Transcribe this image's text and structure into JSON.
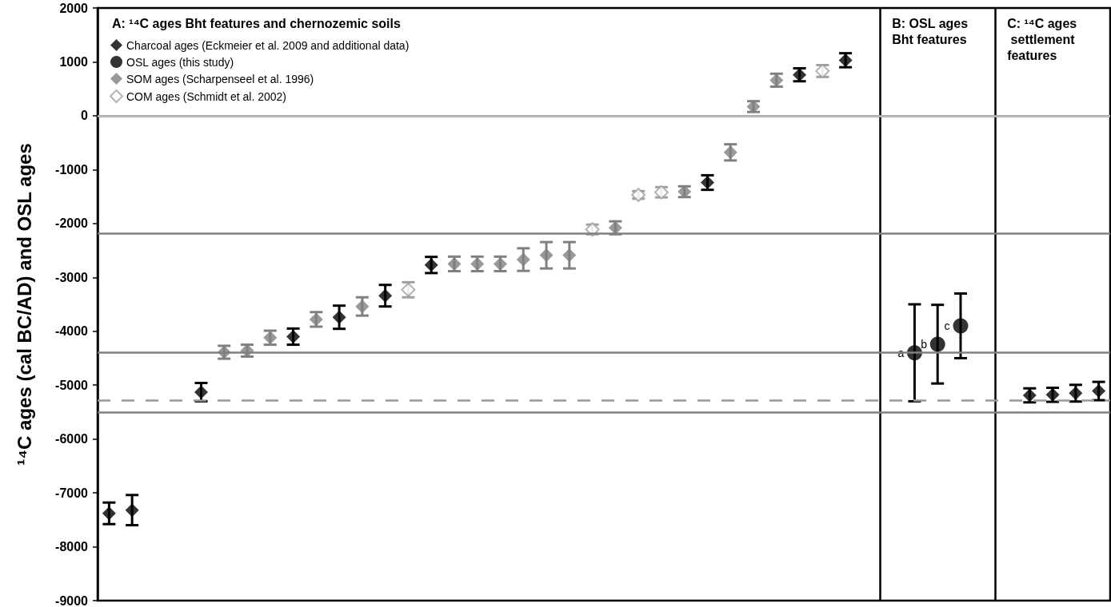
{
  "chart_data": {
    "type": "scatter",
    "title": "A: ¹⁴C ages Bht features and chernozemic soils",
    "ylabel": "¹⁴C ages (cal BC/AD) and OSL ages",
    "ylim": [
      -9000,
      2000
    ],
    "yticks": [
      -9000,
      -8000,
      -7000,
      -6000,
      -5000,
      -4000,
      -3000,
      -2000,
      -1000,
      0,
      1000,
      2000
    ],
    "tick_labels": "y",
    "legend": "top left",
    "annotations": [
      "B: OSL ages Bht features",
      "C: ¹⁴C ages settlement features"
    ],
    "categories": [
      null,
      null,
      null,
      null,
      null,
      null,
      null,
      null,
      null,
      null,
      null,
      null,
      null,
      null,
      null,
      null,
      null,
      null,
      null,
      null,
      null,
      null,
      null,
      null,
      null,
      null,
      null,
      null,
      null,
      null,
      null,
      null,
      null,
      null,
      null,
      null,
      null,
      null,
      null,
      null,
      null,
      null,
      null,
      null
    ],
    "ref_lines": [
      {
        "axis": "y",
        "value": 0,
        "color": "#c8c8c8",
        "line_style": "solid"
      },
      {
        "axis": "y",
        "value": -2180,
        "color": "#808080",
        "line_style": "solid"
      },
      {
        "axis": "y",
        "value": -4400,
        "color": "#808080",
        "line_style": "solid"
      },
      {
        "axis": "y",
        "value": -5290,
        "color": "#999999",
        "line_style": "dashed"
      },
      {
        "axis": "y",
        "value": -5500,
        "color": "#808080",
        "line_style": "solid"
      }
    ],
    "series": [
      {
        "name": "Charcoal ages (Eckmeier et al. 2009 and additional data)",
        "color": "#000000",
        "marker": "diamond",
        "values": [
          -7380,
          -7320,
          null,
          null,
          -5130,
          null,
          null,
          null,
          -4100,
          null,
          -3740,
          null,
          -3340,
          null,
          -2770,
          null,
          null,
          null,
          null,
          null,
          null,
          null,
          null,
          null,
          null,
          null,
          -1240,
          null,
          null,
          null,
          760,
          null,
          1030,
          null,
          null,
          null,
          null,
          null,
          null,
          null,
          -5190,
          -5180,
          -5150,
          -5110
        ],
        "errors": [
          200,
          280,
          null,
          null,
          170,
          null,
          null,
          null,
          150,
          null,
          215,
          null,
          200,
          null,
          150,
          null,
          null,
          null,
          null,
          null,
          null,
          null,
          null,
          null,
          null,
          null,
          135,
          null,
          null,
          null,
          120,
          null,
          130,
          null,
          null,
          null,
          null,
          null,
          null,
          null,
          130,
          130,
          155,
          170
        ]
      },
      {
        "name": "OSL ages (this study)",
        "color": "#000000",
        "marker": "circle",
        "values": [
          null,
          null,
          null,
          null,
          null,
          null,
          null,
          null,
          null,
          null,
          null,
          null,
          null,
          null,
          null,
          null,
          null,
          null,
          null,
          null,
          null,
          null,
          null,
          null,
          null,
          null,
          null,
          null,
          null,
          null,
          null,
          null,
          null,
          null,
          null,
          -4400,
          -4240,
          -3900,
          null,
          null,
          null,
          null,
          null,
          null
        ],
        "errors": [
          null,
          null,
          null,
          null,
          null,
          null,
          null,
          null,
          null,
          null,
          null,
          null,
          null,
          null,
          null,
          null,
          null,
          null,
          null,
          null,
          null,
          null,
          null,
          null,
          null,
          null,
          null,
          null,
          null,
          null,
          null,
          null,
          null,
          null,
          null,
          900,
          730,
          600,
          null,
          null,
          null,
          null,
          null,
          null
        ],
        "value_labels": [
          null,
          null,
          null,
          null,
          null,
          null,
          null,
          null,
          null,
          null,
          null,
          null,
          null,
          null,
          null,
          null,
          null,
          null,
          null,
          null,
          null,
          null,
          null,
          null,
          null,
          null,
          null,
          null,
          null,
          null,
          null,
          null,
          null,
          null,
          null,
          "a",
          "b",
          "c",
          null,
          null,
          null,
          null,
          null,
          null
        ]
      },
      {
        "name": "SOM ages (Scharpenseel et al. 1996)",
        "color": "#808080",
        "marker": "diamond",
        "values": [
          null,
          null,
          null,
          null,
          null,
          -4390,
          -4360,
          -4120,
          null,
          -3780,
          null,
          -3540,
          null,
          null,
          null,
          -2750,
          -2750,
          -2750,
          -2670,
          -2590,
          -2590,
          null,
          -2080,
          null,
          null,
          -1410,
          null,
          -680,
          170,
          660,
          null,
          null,
          null,
          null,
          null,
          null,
          null,
          null,
          null,
          null,
          null,
          null,
          null,
          null
        ],
        "errors": [
          null,
          null,
          null,
          null,
          null,
          120,
          110,
          130,
          null,
          135,
          null,
          170,
          null,
          null,
          null,
          135,
          135,
          135,
          210,
          245,
          245,
          null,
          120,
          null,
          null,
          100,
          null,
          150,
          100,
          120,
          null,
          null,
          null,
          null,
          null,
          null,
          null,
          null,
          null,
          null,
          null,
          null,
          null,
          null
        ]
      },
      {
        "name": "COM ages (Schmidt et al. 2002)",
        "color": "#a0a0a0",
        "marker": "diamond_open",
        "values": [
          null,
          null,
          null,
          null,
          null,
          null,
          null,
          null,
          null,
          null,
          null,
          null,
          null,
          -3230,
          null,
          null,
          null,
          null,
          null,
          null,
          null,
          -2110,
          null,
          -1470,
          -1420,
          null,
          null,
          null,
          null,
          null,
          null,
          830,
          null,
          null,
          null,
          null,
          null,
          null,
          null,
          null,
          null,
          null,
          null,
          null
        ],
        "errors": [
          null,
          null,
          null,
          null,
          null,
          null,
          null,
          null,
          null,
          null,
          null,
          null,
          null,
          140,
          null,
          null,
          null,
          null,
          null,
          null,
          null,
          90,
          null,
          70,
          95,
          null,
          null,
          null,
          null,
          null,
          null,
          110,
          null,
          null,
          null,
          null,
          null,
          null,
          null,
          null,
          null,
          null,
          null,
          null
        ]
      }
    ]
  }
}
